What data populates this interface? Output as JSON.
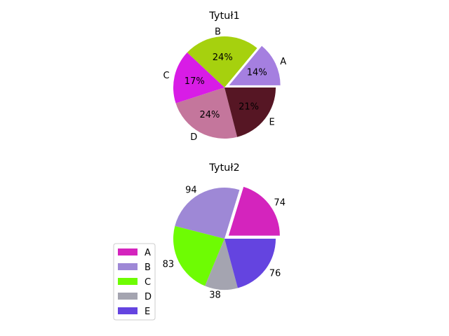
{
  "chart_data": [
    {
      "type": "pie",
      "title": "Tytuł1",
      "categories": [
        "A",
        "B",
        "C",
        "D",
        "E"
      ],
      "values": [
        14,
        24,
        17,
        24,
        21
      ],
      "pct_labels": [
        "14%",
        "24%",
        "17%",
        "24%",
        "21%"
      ],
      "colors": [
        "#a57fe0",
        "#a6d10e",
        "#d81ce6",
        "#c4769c",
        "#561624"
      ],
      "explode": [
        0.1,
        0,
        0,
        0,
        0
      ],
      "start_angle_deg": 0,
      "legend": "none"
    },
    {
      "type": "pie",
      "title": "Tytuł2",
      "categories": [
        "A",
        "B",
        "C",
        "D",
        "E"
      ],
      "values": [
        74,
        94,
        83,
        38,
        76
      ],
      "value_labels": [
        "74",
        "94",
        "83",
        "38",
        "76"
      ],
      "colors": [
        "#d424bd",
        "#9e88d6",
        "#6efc03",
        "#a4a4b0",
        "#6444e0"
      ],
      "explode": [
        0.1,
        0,
        0,
        0,
        0
      ],
      "start_angle_deg": 0,
      "legend": "lower-left"
    }
  ]
}
